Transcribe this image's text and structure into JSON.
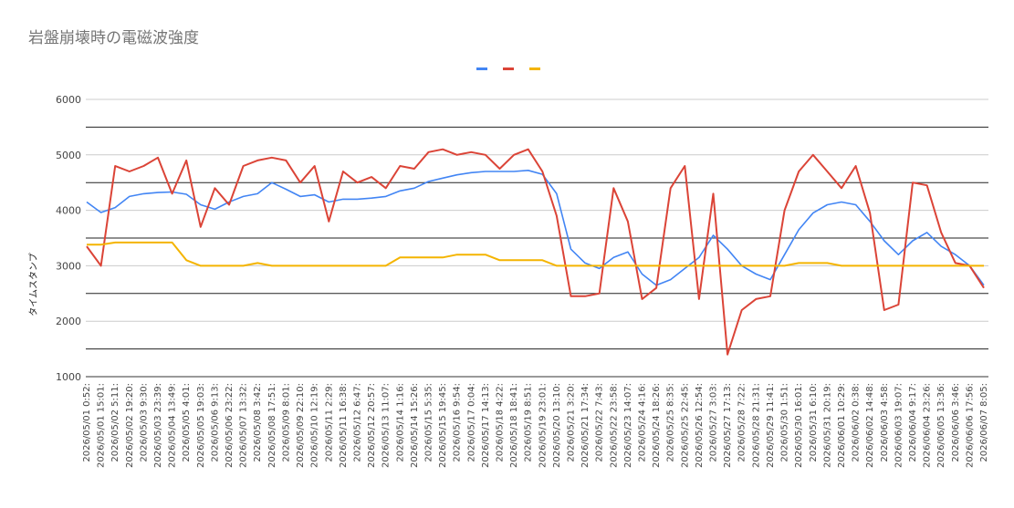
{
  "chart_data": {
    "type": "line",
    "title": "岩盤崩壊時の電磁波強度",
    "xlabel": "",
    "ylabel": "タイムスタンプ",
    "ylim": [
      1000,
      6000
    ],
    "yticks": [
      1000,
      2000,
      3000,
      4000,
      5000,
      6000
    ],
    "legend_position": "top",
    "x": [
      "2026/05/01 0:52:",
      "2026/05/01 15:01:",
      "2026/05/02 5:11:",
      "2026/05/02 19:20:",
      "2026/05/03 9:30:",
      "2026/05/03 23:39:",
      "2026/05/04 13:49:",
      "2026/05/05 4:01:",
      "2026/05/05 19:03:",
      "2026/05/06 9:13:",
      "2026/05/06 23:22:",
      "2026/05/07 13:32:",
      "2026/05/08 3:42:",
      "2026/05/08 17:51:",
      "2026/05/09 8:01:",
      "2026/05/09 22:10:",
      "2026/05/10 12:19:",
      "2026/05/11 2:29:",
      "2026/05/11 16:38:",
      "2026/05/12 6:47:",
      "2026/05/12 20:57:",
      "2026/05/13 11:07:",
      "2026/05/14 1:16:",
      "2026/05/14 15:26:",
      "2026/05/15 5:35:",
      "2026/05/15 19:45:",
      "2026/05/16 9:54:",
      "2026/05/17 0:04:",
      "2026/05/17 14:13:",
      "2026/05/18 4:22:",
      "2026/05/18 18:41:",
      "2026/05/19 8:51:",
      "2026/05/19 23:01:",
      "2026/05/20 13:10:",
      "2026/05/21 3:20:",
      "2026/05/21 17:34:",
      "2026/05/22 7:43:",
      "2026/05/22 23:58:",
      "2026/05/23 14:07:",
      "2026/05/24 4:16:",
      "2026/05/24 18:26:",
      "2026/05/25 8:35:",
      "2026/05/25 22:45:",
      "2026/05/26 12:54:",
      "2026/05/27 3:03:",
      "2026/05/27 17:13:",
      "2026/05/28 7:22:",
      "2026/05/28 21:31:",
      "2026/05/29 11:41:",
      "2026/05/30 1:51:",
      "2026/05/30 16:01:",
      "2026/05/31 6:10:",
      "2026/05/31 20:19:",
      "2026/06/01 10:29:",
      "2026/06/02 0:38:",
      "2026/06/02 14:48:",
      "2026/06/03 4:58:",
      "2026/06/03 19:07:",
      "2026/06/04 9:17:",
      "2026/06/04 23:26:",
      "2026/06/05 13:36:",
      "2026/06/06 3:46:",
      "2026/06/06 17:56:",
      "2026/06/07 8:05:"
    ],
    "series": [
      {
        "color": "#4285f4",
        "values": [
          4150,
          3960,
          4050,
          4250,
          4300,
          4320,
          4330,
          4290,
          4100,
          4020,
          4150,
          4250,
          4300,
          4500,
          4380,
          4250,
          4280,
          4150,
          4200,
          4200,
          4220,
          4250,
          4350,
          4400,
          4520,
          4580,
          4640,
          4680,
          4700,
          4700,
          4700,
          4720,
          4650,
          4300,
          3300,
          3050,
          2950,
          3150,
          3250,
          2850,
          2650,
          2750,
          2950,
          3150,
          3550,
          3300,
          3000,
          2850,
          2750,
          3200,
          3650,
          3950,
          4100,
          4150,
          4100,
          3800,
          3450,
          3200,
          3450,
          3600,
          3350,
          3200,
          3000,
          2650
        ]
      },
      {
        "color": "#db4437",
        "values": [
          3350,
          3000,
          4800,
          4700,
          4800,
          4950,
          4300,
          4900,
          3700,
          4400,
          4100,
          4800,
          4900,
          4950,
          4900,
          4500,
          4800,
          3800,
          4700,
          4500,
          4600,
          4400,
          4800,
          4750,
          5050,
          5100,
          5000,
          5050,
          5000,
          4750,
          5000,
          5100,
          4700,
          3900,
          2450,
          2450,
          2500,
          4400,
          3800,
          2400,
          2600,
          4400,
          4800,
          2400,
          4300,
          1400,
          2200,
          2400,
          2450,
          4000,
          4700,
          5000,
          4700,
          4400,
          4800,
          3950,
          2200,
          2300,
          4500,
          4450,
          3600,
          3050,
          3000,
          2600
        ]
      },
      {
        "color": "#f4b400",
        "values": [
          3380,
          3380,
          3420,
          3420,
          3420,
          3420,
          3420,
          3100,
          3000,
          3000,
          3000,
          3000,
          3050,
          3000,
          3000,
          3000,
          3000,
          3000,
          3000,
          3000,
          3000,
          3000,
          3150,
          3150,
          3150,
          3150,
          3200,
          3200,
          3200,
          3100,
          3100,
          3100,
          3100,
          3000,
          3000,
          3000,
          3000,
          3000,
          3000,
          3000,
          3000,
          3000,
          3000,
          3000,
          3000,
          3000,
          3000,
          3000,
          3000,
          3000,
          3050,
          3050,
          3050,
          3000,
          3000,
          3000,
          3000,
          3000,
          3000,
          3000,
          3000,
          3000,
          3000,
          3000
        ]
      }
    ]
  }
}
